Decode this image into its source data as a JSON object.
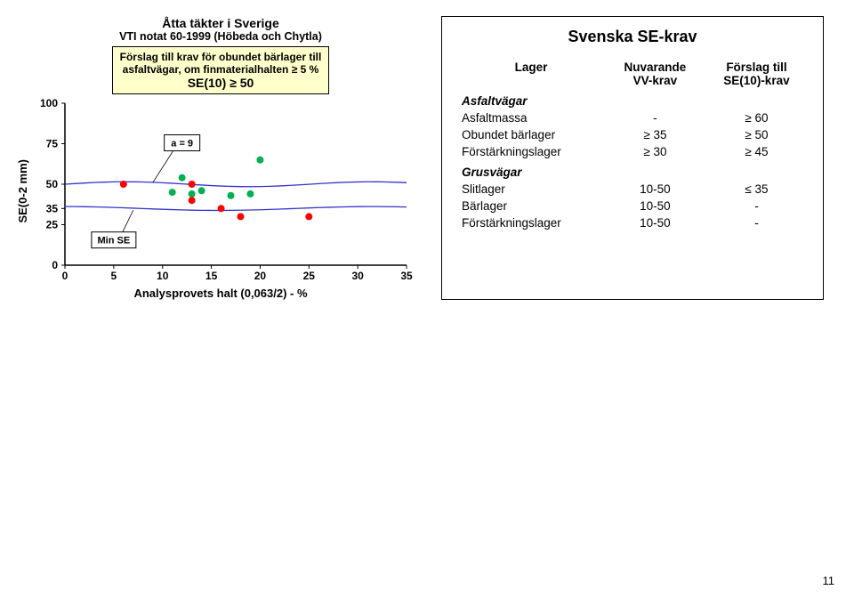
{
  "chart": {
    "title": "Åtta täkter i Sverige",
    "subtitle": "VTI notat 60-1999 (Höbeda och Chytla)",
    "proposal_line1": "Förslag till krav för obundet bärlager till",
    "proposal_line2": "asfaltvägar, om finmaterialhalten ≥ 5 %",
    "proposal_line3": "SE(10) ≥ 50",
    "ylabel": "SE(0-2 mm)",
    "xlabel": "Analysprovets halt (0,063/2) - %",
    "callout_a9": "a = 9",
    "callout_minse": "Min SE",
    "type": "scatter+line",
    "xlim": [
      0,
      35
    ],
    "ylim": [
      0,
      100
    ],
    "xticks": [
      0,
      5,
      10,
      15,
      20,
      25,
      30,
      35
    ],
    "yticks_major": [
      0,
      25,
      50,
      75,
      100
    ],
    "yticks_extra": [
      35
    ],
    "line_color": "#3333cc",
    "points_green": [
      [
        11,
        45
      ],
      [
        12,
        54
      ],
      [
        13,
        44
      ],
      [
        14,
        46
      ],
      [
        17,
        43
      ],
      [
        19,
        44
      ],
      [
        20,
        65
      ]
    ],
    "points_red": [
      [
        6,
        50
      ],
      [
        13,
        40
      ],
      [
        13,
        50
      ],
      [
        16,
        35
      ],
      [
        18,
        30
      ],
      [
        25,
        30
      ]
    ],
    "marker_green": "#00b050",
    "marker_red": "#ff0000",
    "background_color": "#ffffff",
    "axis_color": "#000000"
  },
  "table": {
    "title": "Svenska SE-krav",
    "headers": {
      "c1": "Lager",
      "c2a": "Nuvarande",
      "c2b": "VV-krav",
      "c3a": "Förslag till",
      "c3b": "SE(10)-krav"
    },
    "cat1": "Asfaltvägar",
    "rows1": [
      {
        "name": "Asfaltmassa",
        "vv": "-",
        "se": "≥ 60"
      },
      {
        "name": "Obundet bärlager",
        "vv": "≥ 35",
        "se": "≥ 50"
      },
      {
        "name": "Förstärkningslager",
        "vv": "≥ 30",
        "se": "≥ 45"
      }
    ],
    "cat2": "Grusvägar",
    "rows2": [
      {
        "name": "Slitlager",
        "vv": "10-50",
        "se": "≤ 35"
      },
      {
        "name": "Bärlager",
        "vv": "10-50",
        "se": "-"
      },
      {
        "name": "Förstärkningslager",
        "vv": "10-50",
        "se": "-"
      }
    ]
  },
  "page_num": "11"
}
